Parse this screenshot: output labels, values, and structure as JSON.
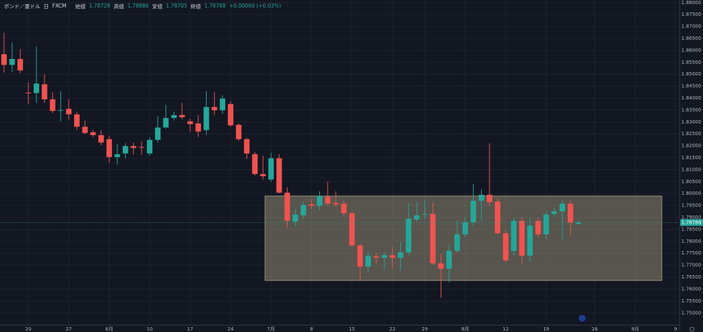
{
  "header": {
    "symbol": "ポンド／豪ドル",
    "interval": "日",
    "source": "FXCM",
    "open_label": "始値",
    "high_label": "高値",
    "low_label": "安値",
    "close_label": "終値",
    "change": "+0.00060 (+0.03%)"
  },
  "chart_data": {
    "type": "candlestick",
    "categories": [
      null,
      null,
      null,
      "20",
      null,
      null,
      null,
      null,
      "27",
      null,
      null,
      null,
      null,
      "6月",
      null,
      null,
      null,
      null,
      "10",
      null,
      null,
      null,
      null,
      "17",
      null,
      null,
      null,
      null,
      "24",
      null,
      null,
      null,
      null,
      "7月",
      null,
      null,
      null,
      null,
      "8",
      null,
      null,
      null,
      null,
      "15",
      null,
      null,
      null,
      null,
      "22",
      null,
      null,
      null,
      "29",
      null,
      null,
      null,
      null,
      "8月",
      null,
      null,
      null,
      null,
      "12",
      null,
      null,
      null,
      null,
      "19",
      null,
      null,
      null,
      null,
      null,
      "26",
      null,
      null,
      null,
      null,
      "9月",
      null,
      null,
      null,
      null,
      "9"
    ],
    "open": [
      1.8584,
      1.8539,
      1.8564,
      1.8423,
      1.8421,
      1.8458,
      1.8395,
      1.8348,
      1.8355,
      1.8332,
      1.828,
      1.8257,
      1.8245,
      1.8228,
      1.8153,
      1.8168,
      1.8199,
      1.8195,
      1.8168,
      1.8225,
      1.8277,
      1.8317,
      1.8329,
      1.8303,
      1.8294,
      1.8266,
      1.8363,
      1.8349,
      1.8375,
      1.8288,
      1.8228,
      1.8165,
      1.8082,
      1.8059,
      1.8148,
      1.8004,
      1.7883,
      1.7909,
      1.7955,
      1.7949,
      1.7987,
      1.7961,
      1.7958,
      1.7918,
      1.7783,
      1.7694,
      1.7737,
      1.7731,
      1.7742,
      1.7731,
      1.7754,
      1.7892,
      1.7914,
      1.7915,
      1.7708,
      1.7685,
      1.776,
      1.7829,
      1.788,
      1.797,
      1.7995,
      1.7967,
      1.7834,
      1.776,
      1.7886,
      1.774,
      1.7886,
      1.7829,
      1.7915,
      1.7926,
      1.7958,
      1.78728,
      null,
      null,
      null,
      null,
      null,
      null,
      null,
      null,
      null,
      null,
      null,
      null
    ],
    "high": [
      1.8674,
      1.8633,
      1.8605,
      1.8467,
      1.8616,
      1.8501,
      1.8424,
      1.8429,
      1.8395,
      1.8343,
      1.8306,
      1.8266,
      1.8266,
      1.8243,
      1.8208,
      1.8211,
      1.8214,
      1.822,
      1.8237,
      1.8323,
      1.8372,
      1.8343,
      1.838,
      1.8314,
      1.8329,
      1.8429,
      1.8426,
      1.8412,
      1.8386,
      1.8294,
      1.8234,
      1.8174,
      1.8159,
      1.8171,
      1.8165,
      1.8027,
      1.7935,
      1.7967,
      1.7978,
      1.801,
      1.805,
      1.801,
      1.797,
      1.7926,
      1.7791,
      1.7757,
      1.7754,
      1.7757,
      1.7777,
      1.7797,
      1.7961,
      1.7964,
      1.7972,
      1.7961,
      1.7748,
      1.7788,
      1.7886,
      1.7903,
      1.8039,
      1.8018,
      1.8211,
      1.7984,
      1.7846,
      1.7898,
      1.7901,
      1.7898,
      1.7898,
      1.7926,
      1.7941,
      1.7972,
      1.7972,
      1.78886,
      null,
      null,
      null,
      null,
      null,
      null,
      null,
      null,
      null,
      null,
      null,
      null
    ],
    "low": [
      1.8507,
      1.851,
      1.8504,
      1.8375,
      1.838,
      1.838,
      1.8337,
      1.8303,
      1.8309,
      1.8266,
      1.8248,
      1.8237,
      1.8202,
      1.8128,
      1.8122,
      1.8148,
      1.8165,
      1.8162,
      1.8159,
      1.8214,
      1.8271,
      1.8306,
      1.8311,
      1.826,
      1.8237,
      1.8245,
      1.8329,
      1.8334,
      1.828,
      1.822,
      1.8145,
      1.8076,
      1.8059,
      1.805,
      1.8001,
      1.7855,
      1.7863,
      1.7895,
      1.7935,
      1.7929,
      1.7949,
      1.7944,
      1.7903,
      1.7777,
      1.7633,
      1.7671,
      1.7705,
      1.7682,
      1.7685,
      1.7676,
      1.7742,
      1.7883,
      1.7892,
      1.7702,
      1.7564,
      1.7628,
      1.7754,
      1.7817,
      1.7863,
      1.7886,
      1.7949,
      1.7829,
      1.7714,
      1.7742,
      1.7708,
      1.7714,
      1.7817,
      1.7811,
      1.7903,
      1.7806,
      1.782,
      1.78705,
      null,
      null,
      null,
      null,
      null,
      null,
      null,
      null,
      null,
      null,
      null,
      null
    ],
    "close": [
      1.8539,
      1.8564,
      1.8516,
      1.8421,
      1.8461,
      1.8395,
      1.8346,
      1.835,
      1.8332,
      1.828,
      1.8254,
      1.8245,
      1.8214,
      1.8153,
      1.8165,
      1.8199,
      1.8191,
      1.8194,
      1.8225,
      1.8277,
      1.8317,
      1.8329,
      1.832,
      1.8291,
      1.826,
      1.8363,
      1.8349,
      1.8398,
      1.8286,
      1.8228,
      1.8168,
      1.8082,
      1.8073,
      1.8148,
      1.8004,
      1.7886,
      1.7912,
      1.7952,
      1.7949,
      1.799,
      1.7958,
      1.7955,
      1.7918,
      1.7783,
      1.7694,
      1.774,
      1.7731,
      1.7742,
      1.7731,
      1.7754,
      1.7895,
      1.7909,
      1.7915,
      1.7708,
      1.7685,
      1.776,
      1.7829,
      1.788,
      1.797,
      1.7995,
      1.7964,
      1.7834,
      1.772,
      1.7886,
      1.774,
      1.7866,
      1.7829,
      1.7912,
      1.7926,
      1.7958,
      1.7878,
      1.78788,
      null,
      null,
      null,
      null,
      null,
      null,
      null,
      null,
      null,
      null,
      null,
      null
    ],
    "up_color": "#26a69a",
    "down_color": "#ef5350",
    "ylim": [
      1.7449,
      1.8811
    ],
    "yticks": [
      {
        "value": 1.75,
        "label": "1.75000"
      },
      {
        "value": 1.755,
        "label": "1.75500"
      },
      {
        "value": 1.76,
        "label": "1.76000"
      },
      {
        "value": 1.765,
        "label": "1.76500"
      },
      {
        "value": 1.77,
        "label": "1.77000"
      },
      {
        "value": 1.775,
        "label": "1.77500"
      },
      {
        "value": 1.78,
        "label": "1.78000"
      },
      {
        "value": 1.785,
        "label": "1.78500"
      },
      {
        "value": 1.79,
        "label": "1.79000"
      },
      {
        "value": 1.795,
        "label": "1.79500"
      },
      {
        "value": 1.8,
        "label": "1.80000"
      },
      {
        "value": 1.805,
        "label": "1.80500"
      },
      {
        "value": 1.81,
        "label": "1.81000"
      },
      {
        "value": 1.815,
        "label": "1.81500"
      },
      {
        "value": 1.82,
        "label": "1.82000"
      },
      {
        "value": 1.825,
        "label": "1.82500"
      },
      {
        "value": 1.83,
        "label": "1.83000"
      },
      {
        "value": 1.835,
        "label": "1.83500"
      },
      {
        "value": 1.84,
        "label": "1.84000"
      },
      {
        "value": 1.845,
        "label": "1.84500"
      },
      {
        "value": 1.85,
        "label": "1.85000"
      },
      {
        "value": 1.855,
        "label": "1.85500"
      },
      {
        "value": 1.86,
        "label": "1.86000"
      },
      {
        "value": 1.865,
        "label": "1.86500"
      },
      {
        "value": 1.87,
        "label": "1.87000"
      },
      {
        "value": 1.875,
        "label": "1.87500"
      },
      {
        "value": 1.88,
        "label": "1.88000"
      }
    ],
    "grid": true,
    "box": {
      "x": [
        32.25,
        81.3
      ],
      "y": [
        1.7636,
        1.799
      ],
      "color": "#f5e6b4"
    }
  }
}
